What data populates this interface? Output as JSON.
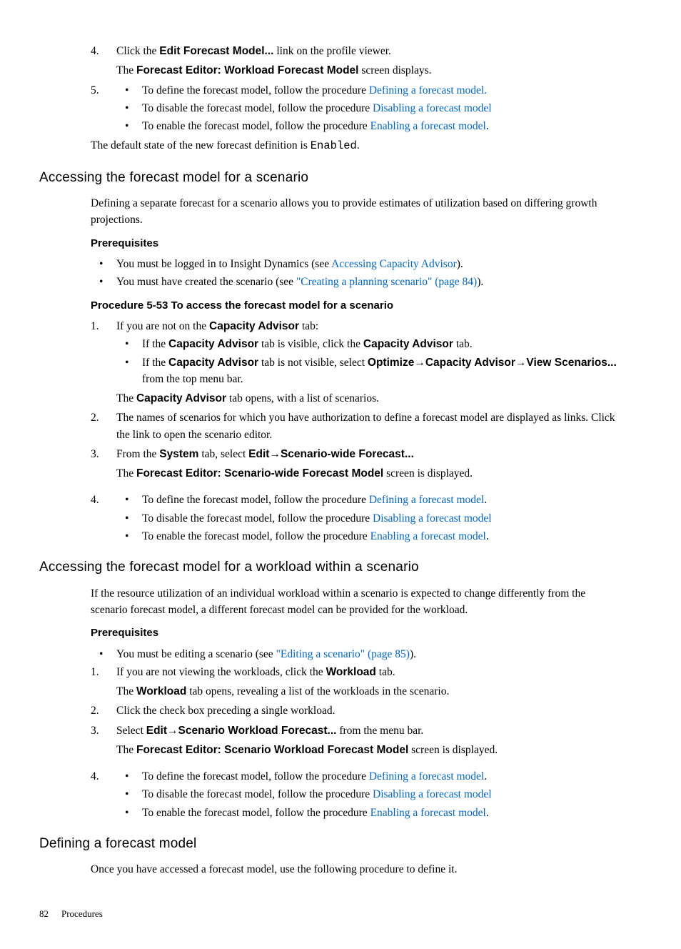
{
  "steps_top": {
    "step4": {
      "num": "4.",
      "text_pre": "Click the ",
      "bold": "Edit Forecast Model...",
      "text_post": " link on the profile viewer.",
      "line2_pre": "The ",
      "line2_bold": "Forecast Editor: Workload Forecast Model",
      "line2_post": " screen displays."
    },
    "step5": {
      "num": "5.",
      "bullets": [
        {
          "pre": "To define the forecast model, follow the procedure ",
          "link": "Defining a forecast model.",
          "post": ""
        },
        {
          "pre": "To disable the forecast model, follow the procedure ",
          "link": "Disabling a forecast model",
          "post": ""
        },
        {
          "pre": "To enable the forecast model, follow the procedure ",
          "link": "Enabling a forecast model",
          "post": "."
        }
      ]
    },
    "default_pre": "The default state of the new forecast definition is ",
    "default_mono": "Enabled",
    "default_post": "."
  },
  "section1": {
    "heading": "Accessing the forecast model for a scenario",
    "intro": "Defining a separate forecast for a scenario allows you to provide estimates of utilization based on differing growth projections.",
    "prereq_heading": "Prerequisites",
    "prereqs": [
      {
        "pre": "You must be logged in to Insight Dynamics (see ",
        "link": "Accessing Capacity Advisor",
        "post": ")."
      },
      {
        "pre": "You must have created the scenario (see ",
        "link": "\"Creating a planning scenario\" (page 84)",
        "post": ")."
      }
    ],
    "procedure_heading": "Procedure 5-53 To access the forecast model for a scenario",
    "p1": {
      "num": "1.",
      "pre": "If you are not on the ",
      "bold": "Capacity Advisor",
      "post": " tab:",
      "b1_pre": "If the ",
      "b1_bold1": "Capacity Advisor",
      "b1_mid": " tab is visible, click the ",
      "b1_bold2": "Capacity Advisor",
      "b1_post": " tab.",
      "b2_pre": "If the ",
      "b2_bold1": "Capacity Advisor",
      "b2_mid": " tab is not visible, select ",
      "b2_bold2": "Optimize",
      "b2_arrow1": "→",
      "b2_bold3": "Capacity Advisor",
      "b2_arrow2": "→",
      "b2_bold4": "View Scenarios...",
      "b2_post": " from the top menu bar.",
      "after_pre": "The ",
      "after_bold": "Capacity Advisor",
      "after_post": " tab opens, with a list of scenarios."
    },
    "p2": {
      "num": "2.",
      "text": "The names of scenarios for which you have authorization to define a forecast model are displayed as links. Click the link to open the scenario editor."
    },
    "p3": {
      "num": "3.",
      "pre": "From the ",
      "bold1": "System",
      "mid1": " tab, select ",
      "bold2": "Edit",
      "arrow": "→",
      "bold3": "Scenario-wide Forecast...",
      "after_pre": "The ",
      "after_bold": "Forecast Editor: Scenario-wide Forecast Model",
      "after_post": " screen is displayed."
    },
    "p4": {
      "num": "4.",
      "bullets": [
        {
          "pre": "To define the forecast model, follow the procedure ",
          "link": "Defining a forecast model",
          "post": "."
        },
        {
          "pre": "To disable the forecast model, follow the procedure ",
          "link": "Disabling a forecast model",
          "post": ""
        },
        {
          "pre": "To enable the forecast model, follow the procedure ",
          "link": "Enabling a forecast model",
          "post": "."
        }
      ]
    }
  },
  "section2": {
    "heading": "Accessing the forecast model for a workload within a scenario",
    "intro": "If the resource utilization of an individual workload within a scenario is expected to change differently from the scenario forecast model, a different forecast model can be provided for the workload.",
    "prereq_heading": "Prerequisites",
    "prereqs": [
      {
        "pre": "You must be editing a scenario (see ",
        "link": "\"Editing a scenario\" (page 85)",
        "post": ")."
      }
    ],
    "p1": {
      "num": "1.",
      "pre": "If you are not viewing the workloads, click the ",
      "bold": "Workload",
      "post": " tab.",
      "after_pre": "The ",
      "after_bold": "Workload",
      "after_post": " tab opens, revealing a list of the workloads in the scenario."
    },
    "p2": {
      "num": "2.",
      "text": "Click the check box preceding a single workload."
    },
    "p3": {
      "num": "3.",
      "pre": "Select ",
      "bold1": "Edit",
      "arrow": "→",
      "bold2": "Scenario Workload Forecast...",
      "post": " from the menu bar.",
      "after_pre": "The ",
      "after_bold": "Forecast Editor: Scenario Workload Forecast Model",
      "after_post": " screen is displayed."
    },
    "p4": {
      "num": "4.",
      "bullets": [
        {
          "pre": "To define the forecast model, follow the procedure ",
          "link": "Defining a forecast model",
          "post": "."
        },
        {
          "pre": "To disable the forecast model, follow the procedure ",
          "link": "Disabling a forecast model",
          "post": ""
        },
        {
          "pre": "To enable the forecast model, follow the procedure ",
          "link": "Enabling a forecast model",
          "post": "."
        }
      ]
    }
  },
  "section3": {
    "heading": "Defining a forecast model",
    "intro": "Once you have accessed a forecast model, use the following procedure to define it."
  },
  "footer": {
    "page": "82",
    "label": "Procedures"
  }
}
